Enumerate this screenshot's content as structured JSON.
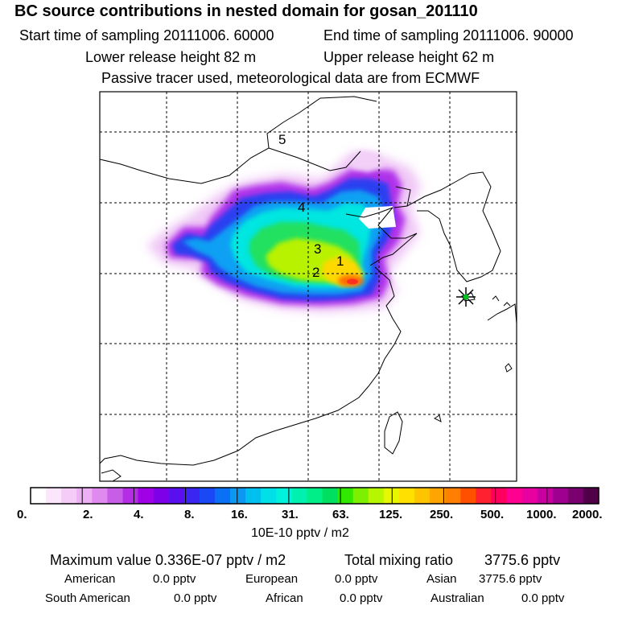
{
  "header": {
    "title": "BC  source contributions in nested domain for gosan_201110",
    "start_label": "Start time of sampling 20111006. 60000",
    "end_label": "End time of sampling 20111006. 90000",
    "lower_label": "Lower release height   82 m",
    "upper_label": "Upper release height   62 m",
    "note": "Passive tracer used, meteorological data are from ECMWF"
  },
  "map": {
    "region_labels": [
      "1",
      "2",
      "3",
      "4",
      "5"
    ],
    "receptor": "receptor-star-icon"
  },
  "colorbar": {
    "tick_labels": [
      "0.",
      "2.",
      "4.",
      "8.",
      "16.",
      "31.",
      "63.",
      "125.",
      "250.",
      "500.",
      "1000.",
      "2000."
    ],
    "unit": "10E-10 pptv / m2",
    "colors": [
      "#ffffff",
      "#fbe6fb",
      "#f5ccf7",
      "#eeb0f5",
      "#e08af0",
      "#c85ee8",
      "#b52ee6",
      "#9f00e6",
      "#7e00e8",
      "#5a10ee",
      "#3a25f2",
      "#1a48f5",
      "#0a70f5",
      "#0a98f3",
      "#00c0f0",
      "#00e0e6",
      "#00f2dd",
      "#00f0b0",
      "#00ee88",
      "#00e060",
      "#30e800",
      "#7cf000",
      "#b8f500",
      "#e8f700",
      "#ffe000",
      "#ffc400",
      "#ffa400",
      "#ff8000",
      "#ff5000",
      "#ff2030",
      "#ff0060",
      "#ff0090",
      "#e800a0",
      "#c800a0",
      "#a00090",
      "#7a0070",
      "#500048"
    ]
  },
  "footer": {
    "max_label": "Maximum value  0.336E-07 pptv / m2",
    "total_label": "Total mixing ratio",
    "total_value": "3775.6 pptv",
    "regions": [
      {
        "name": "American",
        "value": "0.0 pptv"
      },
      {
        "name": "European",
        "value": "0.0 pptv"
      },
      {
        "name": "Asian",
        "value": "3775.6 pptv"
      },
      {
        "name": "South American",
        "value": "0.0 pptv"
      },
      {
        "name": "African",
        "value": "0.0 pptv"
      },
      {
        "name": "Australian",
        "value": "0.0 pptv"
      }
    ]
  }
}
